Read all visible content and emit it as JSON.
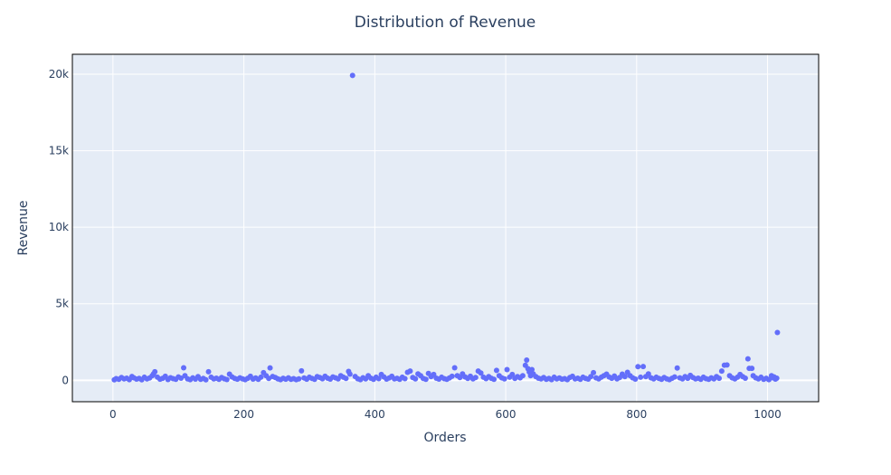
{
  "chart_data": {
    "type": "scatter",
    "title": "Distribution of Revenue",
    "xlabel": "Orders",
    "ylabel": "Revenue",
    "xlim": [
      -62,
      1078
    ],
    "ylim": [
      -1400,
      21300
    ],
    "x_ticks": [
      {
        "value": 0,
        "label": "0"
      },
      {
        "value": 200,
        "label": "200"
      },
      {
        "value": 400,
        "label": "400"
      },
      {
        "value": 600,
        "label": "600"
      },
      {
        "value": 800,
        "label": "800"
      },
      {
        "value": 1000,
        "label": "1000"
      }
    ],
    "y_ticks": [
      {
        "value": 0,
        "label": "0"
      },
      {
        "value": 5000,
        "label": "5k"
      },
      {
        "value": 10000,
        "label": "10k"
      },
      {
        "value": 15000,
        "label": "15k"
      },
      {
        "value": 20000,
        "label": "20k"
      }
    ],
    "colors": {
      "marker": "#636efa",
      "plot_bg": "#e5ecf6",
      "grid": "#ffffff",
      "text": "#2a3f5f"
    },
    "points": [
      [
        2,
        30
      ],
      [
        5,
        110
      ],
      [
        9,
        60
      ],
      [
        13,
        180
      ],
      [
        17,
        90
      ],
      [
        21,
        140
      ],
      [
        25,
        40
      ],
      [
        29,
        250
      ],
      [
        32,
        160
      ],
      [
        36,
        80
      ],
      [
        40,
        120
      ],
      [
        44,
        35
      ],
      [
        48,
        200
      ],
      [
        52,
        95
      ],
      [
        56,
        150
      ],
      [
        60,
        300
      ],
      [
        62,
        420
      ],
      [
        64,
        560
      ],
      [
        68,
        200
      ],
      [
        72,
        70
      ],
      [
        76,
        130
      ],
      [
        80,
        260
      ],
      [
        84,
        50
      ],
      [
        88,
        170
      ],
      [
        92,
        110
      ],
      [
        96,
        60
      ],
      [
        100,
        220
      ],
      [
        104,
        140
      ],
      [
        108,
        820
      ],
      [
        110,
        300
      ],
      [
        114,
        90
      ],
      [
        118,
        40
      ],
      [
        122,
        160
      ],
      [
        126,
        80
      ],
      [
        130,
        240
      ],
      [
        134,
        60
      ],
      [
        138,
        120
      ],
      [
        142,
        30
      ],
      [
        146,
        560
      ],
      [
        150,
        200
      ],
      [
        154,
        90
      ],
      [
        158,
        140
      ],
      [
        162,
        60
      ],
      [
        166,
        180
      ],
      [
        170,
        100
      ],
      [
        174,
        50
      ],
      [
        178,
        400
      ],
      [
        182,
        220
      ],
      [
        186,
        120
      ],
      [
        190,
        70
      ],
      [
        194,
        160
      ],
      [
        198,
        90
      ],
      [
        202,
        40
      ],
      [
        206,
        130
      ],
      [
        210,
        260
      ],
      [
        214,
        80
      ],
      [
        218,
        150
      ],
      [
        222,
        60
      ],
      [
        226,
        200
      ],
      [
        230,
        500
      ],
      [
        234,
        300
      ],
      [
        238,
        120
      ],
      [
        240,
        810
      ],
      [
        244,
        250
      ],
      [
        248,
        180
      ],
      [
        252,
        90
      ],
      [
        256,
        40
      ],
      [
        260,
        130
      ],
      [
        264,
        70
      ],
      [
        268,
        160
      ],
      [
        272,
        60
      ],
      [
        276,
        110
      ],
      [
        280,
        40
      ],
      [
        284,
        90
      ],
      [
        288,
        620
      ],
      [
        292,
        150
      ],
      [
        296,
        70
      ],
      [
        300,
        200
      ],
      [
        304,
        120
      ],
      [
        308,
        60
      ],
      [
        312,
        240
      ],
      [
        316,
        180
      ],
      [
        320,
        100
      ],
      [
        324,
        260
      ],
      [
        328,
        140
      ],
      [
        332,
        80
      ],
      [
        336,
        220
      ],
      [
        340,
        160
      ],
      [
        344,
        90
      ],
      [
        348,
        300
      ],
      [
        352,
        200
      ],
      [
        356,
        120
      ],
      [
        360,
        580
      ],
      [
        362,
        400
      ],
      [
        366,
        19920
      ],
      [
        370,
        250
      ],
      [
        374,
        100
      ],
      [
        378,
        40
      ],
      [
        382,
        170
      ],
      [
        386,
        90
      ],
      [
        390,
        300
      ],
      [
        394,
        140
      ],
      [
        398,
        60
      ],
      [
        402,
        200
      ],
      [
        406,
        110
      ],
      [
        410,
        380
      ],
      [
        414,
        220
      ],
      [
        418,
        80
      ],
      [
        422,
        150
      ],
      [
        426,
        260
      ],
      [
        430,
        90
      ],
      [
        434,
        130
      ],
      [
        438,
        60
      ],
      [
        442,
        200
      ],
      [
        446,
        110
      ],
      [
        450,
        520
      ],
      [
        454,
        600
      ],
      [
        458,
        180
      ],
      [
        462,
        90
      ],
      [
        466,
        420
      ],
      [
        470,
        300
      ],
      [
        474,
        120
      ],
      [
        478,
        60
      ],
      [
        482,
        450
      ],
      [
        486,
        240
      ],
      [
        490,
        380
      ],
      [
        494,
        140
      ],
      [
        498,
        80
      ],
      [
        502,
        200
      ],
      [
        506,
        110
      ],
      [
        510,
        60
      ],
      [
        514,
        150
      ],
      [
        518,
        260
      ],
      [
        522,
        820
      ],
      [
        526,
        300
      ],
      [
        530,
        180
      ],
      [
        534,
        420
      ],
      [
        538,
        220
      ],
      [
        542,
        120
      ],
      [
        546,
        260
      ],
      [
        550,
        90
      ],
      [
        554,
        180
      ],
      [
        558,
        600
      ],
      [
        562,
        480
      ],
      [
        566,
        200
      ],
      [
        570,
        110
      ],
      [
        574,
        240
      ],
      [
        578,
        130
      ],
      [
        582,
        60
      ],
      [
        586,
        650
      ],
      [
        590,
        300
      ],
      [
        594,
        160
      ],
      [
        598,
        90
      ],
      [
        602,
        700
      ],
      [
        606,
        200
      ],
      [
        610,
        380
      ],
      [
        614,
        120
      ],
      [
        618,
        240
      ],
      [
        622,
        160
      ],
      [
        626,
        300
      ],
      [
        630,
        980
      ],
      [
        632,
        1320
      ],
      [
        634,
        760
      ],
      [
        636,
        540
      ],
      [
        638,
        300
      ],
      [
        640,
        700
      ],
      [
        642,
        420
      ],
      [
        646,
        240
      ],
      [
        650,
        140
      ],
      [
        654,
        90
      ],
      [
        658,
        180
      ],
      [
        662,
        60
      ],
      [
        666,
        120
      ],
      [
        670,
        40
      ],
      [
        674,
        200
      ],
      [
        678,
        90
      ],
      [
        682,
        150
      ],
      [
        686,
        70
      ],
      [
        690,
        110
      ],
      [
        694,
        40
      ],
      [
        698,
        180
      ],
      [
        702,
        260
      ],
      [
        706,
        90
      ],
      [
        710,
        140
      ],
      [
        714,
        60
      ],
      [
        718,
        200
      ],
      [
        722,
        120
      ],
      [
        726,
        80
      ],
      [
        730,
        240
      ],
      [
        734,
        500
      ],
      [
        738,
        160
      ],
      [
        742,
        90
      ],
      [
        746,
        200
      ],
      [
        750,
        300
      ],
      [
        754,
        400
      ],
      [
        758,
        220
      ],
      [
        762,
        130
      ],
      [
        766,
        280
      ],
      [
        770,
        90
      ],
      [
        774,
        180
      ],
      [
        778,
        400
      ],
      [
        782,
        240
      ],
      [
        786,
        520
      ],
      [
        790,
        300
      ],
      [
        794,
        160
      ],
      [
        798,
        80
      ],
      [
        802,
        890
      ],
      [
        806,
        200
      ],
      [
        810,
        900
      ],
      [
        814,
        240
      ],
      [
        818,
        420
      ],
      [
        822,
        160
      ],
      [
        826,
        90
      ],
      [
        830,
        200
      ],
      [
        834,
        120
      ],
      [
        838,
        60
      ],
      [
        842,
        180
      ],
      [
        846,
        90
      ],
      [
        850,
        40
      ],
      [
        854,
        130
      ],
      [
        858,
        220
      ],
      [
        862,
        800
      ],
      [
        866,
        160
      ],
      [
        870,
        90
      ],
      [
        874,
        240
      ],
      [
        878,
        130
      ],
      [
        882,
        320
      ],
      [
        886,
        180
      ],
      [
        890,
        90
      ],
      [
        894,
        140
      ],
      [
        898,
        60
      ],
      [
        902,
        200
      ],
      [
        906,
        110
      ],
      [
        910,
        60
      ],
      [
        914,
        160
      ],
      [
        918,
        90
      ],
      [
        922,
        240
      ],
      [
        926,
        130
      ],
      [
        930,
        600
      ],
      [
        934,
        990
      ],
      [
        938,
        1000
      ],
      [
        942,
        300
      ],
      [
        946,
        160
      ],
      [
        950,
        90
      ],
      [
        954,
        200
      ],
      [
        958,
        380
      ],
      [
        962,
        240
      ],
      [
        966,
        140
      ],
      [
        970,
        1400
      ],
      [
        972,
        780
      ],
      [
        976,
        780
      ],
      [
        978,
        300
      ],
      [
        982,
        160
      ],
      [
        986,
        90
      ],
      [
        990,
        200
      ],
      [
        994,
        60
      ],
      [
        998,
        130
      ],
      [
        1002,
        40
      ],
      [
        1006,
        300
      ],
      [
        1008,
        160
      ],
      [
        1010,
        220
      ],
      [
        1012,
        80
      ],
      [
        1014,
        140
      ],
      [
        1015,
        3120
      ]
    ]
  }
}
